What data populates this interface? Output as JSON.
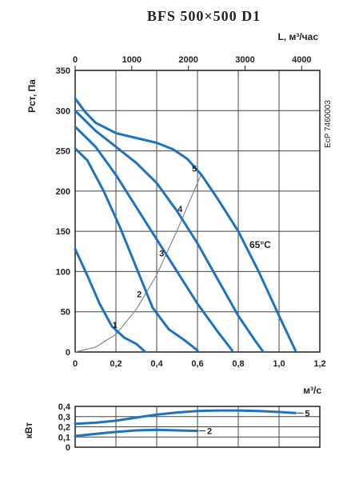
{
  "chart_data": [
    {
      "type": "line",
      "title": "BFS 500×500 D1",
      "ylabel": "Pст, Па",
      "xlabel": "м³/с",
      "x2label": "L, м³/час",
      "side_code": "EcP 7460003",
      "temperature_label": "65°C",
      "xlim": [
        0,
        1.2
      ],
      "ylim": [
        0,
        350
      ],
      "x2lim": [
        0,
        4320
      ],
      "x_ticks": [
        "0",
        "0,2",
        "0,4",
        "0,6",
        "0,8",
        "1,0",
        "1,2"
      ],
      "x_tick_values": [
        0,
        0.2,
        0.4,
        0.6,
        0.8,
        1.0,
        1.2
      ],
      "y_ticks": [
        "0",
        "50",
        "100",
        "150",
        "200",
        "250",
        "300",
        "350"
      ],
      "y_tick_values": [
        0,
        50,
        100,
        150,
        200,
        250,
        300,
        350
      ],
      "x2_ticks": [
        "0",
        "1000",
        "2000",
        "3000",
        "4000"
      ],
      "x2_tick_values": [
        0,
        1000,
        2000,
        3000,
        4000
      ],
      "grid": true,
      "series": [
        {
          "name": "1",
          "x": [
            0,
            0.06,
            0.12,
            0.18,
            0.24,
            0.3,
            0.34
          ],
          "y": [
            128,
            95,
            60,
            32,
            18,
            10,
            1
          ]
        },
        {
          "name": "2",
          "x": [
            0,
            0.06,
            0.14,
            0.22,
            0.3,
            0.38,
            0.46,
            0.54,
            0.6
          ],
          "y": [
            253,
            238,
            200,
            155,
            105,
            55,
            28,
            14,
            2
          ]
        },
        {
          "name": "3",
          "x": [
            0,
            0.1,
            0.2,
            0.3,
            0.4,
            0.5,
            0.6,
            0.7,
            0.77
          ],
          "y": [
            280,
            255,
            220,
            180,
            140,
            100,
            60,
            25,
            2
          ]
        },
        {
          "name": "4",
          "x": [
            0,
            0.1,
            0.2,
            0.3,
            0.4,
            0.5,
            0.6,
            0.7,
            0.8,
            0.88,
            0.92
          ],
          "y": [
            300,
            275,
            255,
            235,
            210,
            175,
            135,
            90,
            45,
            15,
            1
          ]
        },
        {
          "name": "5",
          "x": [
            0,
            0.05,
            0.1,
            0.2,
            0.3,
            0.4,
            0.48,
            0.55,
            0.62,
            0.7,
            0.8,
            0.9,
            1.0,
            1.08
          ],
          "y": [
            315,
            298,
            285,
            272,
            266,
            260,
            252,
            240,
            220,
            190,
            150,
            100,
            45,
            2
          ]
        }
      ],
      "system_curve": {
        "x": [
          0,
          0.1,
          0.2,
          0.3,
          0.4,
          0.5,
          0.62
        ],
        "y": [
          0,
          6,
          22,
          53,
          96,
          151,
          222
        ]
      },
      "system_curve_points": [
        {
          "label": "1",
          "x": 0.21,
          "y": 26
        },
        {
          "label": "2",
          "x": 0.33,
          "y": 64
        },
        {
          "label": "3",
          "x": 0.44,
          "y": 115
        },
        {
          "label": "4",
          "x": 0.53,
          "y": 170
        },
        {
          "label": "5",
          "x": 0.6,
          "y": 220
        }
      ],
      "colors": {
        "curve": "#1e73be",
        "system": "#888888",
        "grid": "#444444",
        "axis": "#222222"
      }
    },
    {
      "type": "line",
      "ylabel": "кВт",
      "xlim": [
        0,
        1.2
      ],
      "ylim": [
        0,
        0.4
      ],
      "y_ticks": [
        "0",
        "0,1",
        "0,2",
        "0,3",
        "0,4"
      ],
      "y_tick_values": [
        0,
        0.1,
        0.2,
        0.3,
        0.4
      ],
      "grid": true,
      "series": [
        {
          "name": "5",
          "x": [
            0,
            0.1,
            0.2,
            0.3,
            0.4,
            0.5,
            0.6,
            0.7,
            0.8,
            0.9,
            1.0,
            1.08
          ],
          "y": [
            0.23,
            0.24,
            0.26,
            0.29,
            0.32,
            0.34,
            0.355,
            0.36,
            0.36,
            0.355,
            0.345,
            0.335
          ]
        },
        {
          "name": "2",
          "x": [
            0,
            0.1,
            0.2,
            0.3,
            0.4,
            0.5,
            0.6
          ],
          "y": [
            0.11,
            0.13,
            0.15,
            0.165,
            0.17,
            0.165,
            0.16
          ]
        }
      ],
      "colors": {
        "curve": "#1e73be",
        "grid": "#444444"
      }
    }
  ]
}
